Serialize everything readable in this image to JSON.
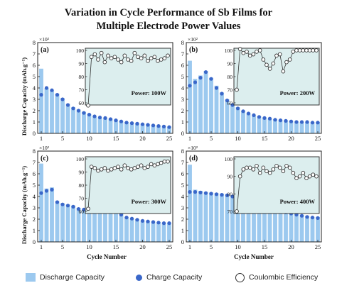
{
  "figure": {
    "title_line1": "Variation in Cycle Performance of Sb Films for",
    "title_line2": "Multiple Electrode Power Values",
    "ylabel": "Discharge Capacity (mAh.g⁻¹)",
    "xlabel": "Cycle Number",
    "y_exponent": "×10²"
  },
  "legend": {
    "discharge": "Discharge Capacity",
    "charge": "Charge Capacity",
    "coulombic": "Coulombic Efficiency"
  },
  "colors": {
    "bar": "#9cc9ef",
    "charge_dot": "#3a67c9",
    "inset_bg": "#dceeee",
    "ring": "#333333"
  },
  "chart_data": [
    {
      "type": "bar",
      "panel_label": "(a)",
      "inset_label": "Power: 100W",
      "x": [
        1,
        2,
        3,
        4,
        5,
        6,
        7,
        8,
        9,
        10,
        11,
        12,
        13,
        14,
        15,
        16,
        17,
        18,
        19,
        20,
        21,
        22,
        23,
        24,
        25
      ],
      "discharge": [
        5.7,
        4.0,
        3.8,
        3.5,
        3.1,
        2.6,
        2.3,
        2.1,
        1.9,
        1.7,
        1.5,
        1.4,
        1.35,
        1.3,
        1.2,
        1.1,
        1.0,
        0.95,
        0.9,
        0.85,
        0.8,
        0.75,
        0.7,
        0.65,
        0.6
      ],
      "charge": [
        3.4,
        4.0,
        3.8,
        3.4,
        3.0,
        2.5,
        2.2,
        2.0,
        1.8,
        1.65,
        1.5,
        1.4,
        1.35,
        1.25,
        1.15,
        1.05,
        0.95,
        0.9,
        0.85,
        0.8,
        0.75,
        0.7,
        0.65,
        0.6,
        0.55
      ],
      "coulombic": [
        58,
        95,
        97,
        93,
        98,
        91,
        96,
        94,
        95,
        93,
        91,
        96,
        93,
        92,
        98,
        95,
        94,
        96,
        92,
        94,
        95,
        92,
        93,
        94,
        96
      ],
      "ylim": [
        0,
        8
      ],
      "yticks": [
        0,
        1,
        2,
        3,
        4,
        5,
        6,
        7,
        8
      ],
      "xticks": [
        1,
        5,
        10,
        15,
        20,
        25
      ],
      "inset_ylim": [
        60,
        100
      ],
      "inset_yticks": [
        60,
        70,
        80,
        90,
        100
      ]
    },
    {
      "type": "bar",
      "panel_label": "(b)",
      "inset_label": "Power: 200W",
      "x": [
        1,
        2,
        3,
        4,
        5,
        6,
        7,
        8,
        9,
        10,
        11,
        12,
        13,
        14,
        15,
        16,
        17,
        18,
        19,
        20,
        21,
        22,
        23,
        24,
        25
      ],
      "discharge": [
        6.4,
        4.8,
        5.1,
        5.5,
        4.9,
        4.2,
        3.6,
        3.0,
        2.6,
        2.3,
        2.0,
        1.8,
        1.6,
        1.5,
        1.4,
        1.3,
        1.25,
        1.2,
        1.15,
        1.1,
        1.05,
        1.0,
        1.0,
        1.0,
        1.0
      ],
      "charge": [
        4.2,
        4.5,
        4.9,
        5.4,
        4.8,
        4.0,
        3.5,
        2.9,
        2.5,
        2.2,
        1.95,
        1.75,
        1.6,
        1.45,
        1.35,
        1.3,
        1.2,
        1.15,
        1.1,
        1.05,
        1.0,
        1.0,
        1.0,
        0.95,
        0.95
      ],
      "coulombic": [
        70,
        101,
        98,
        99,
        96,
        97,
        99,
        100,
        93,
        89,
        86,
        90,
        96,
        97,
        84,
        91,
        93,
        99,
        100,
        100,
        100,
        100,
        100,
        100,
        100
      ],
      "ylim": [
        0,
        8
      ],
      "yticks": [
        0,
        1,
        2,
        3,
        4,
        5,
        6,
        7,
        8
      ],
      "xticks": [
        1,
        5,
        10,
        15,
        20,
        25
      ],
      "inset_ylim": [
        60,
        100
      ],
      "inset_yticks": [
        60,
        70,
        80,
        90,
        100
      ]
    },
    {
      "type": "bar",
      "panel_label": "(c)",
      "inset_label": "Power: 300W",
      "x": [
        1,
        2,
        3,
        4,
        5,
        6,
        7,
        8,
        9,
        10,
        11,
        12,
        13,
        14,
        15,
        16,
        17,
        18,
        19,
        20,
        21,
        22,
        23,
        24,
        25
      ],
      "discharge": [
        6.9,
        4.7,
        4.8,
        3.6,
        3.4,
        3.3,
        3.2,
        3.0,
        2.9,
        2.9,
        3.1,
        3.3,
        3.2,
        3.1,
        2.8,
        2.5,
        2.2,
        2.1,
        2.0,
        1.9,
        1.85,
        1.8,
        1.75,
        1.7,
        1.7
      ],
      "charge": [
        4.3,
        4.5,
        4.6,
        3.5,
        3.3,
        3.2,
        3.1,
        2.9,
        2.85,
        2.85,
        3.0,
        3.2,
        3.1,
        3.0,
        2.7,
        2.4,
        2.15,
        2.05,
        1.95,
        1.85,
        1.8,
        1.75,
        1.7,
        1.65,
        1.65
      ],
      "coulombic": [
        62,
        94,
        93,
        91,
        92,
        93,
        91,
        92,
        93,
        94,
        92,
        95,
        93,
        92,
        93,
        94,
        95,
        93,
        94,
        96,
        95,
        96,
        97,
        98,
        98
      ],
      "ylim": [
        0,
        8
      ],
      "yticks": [
        0,
        1,
        2,
        3,
        4,
        5,
        6,
        7,
        8
      ],
      "xticks": [
        1,
        5,
        10,
        15,
        20,
        25
      ],
      "inset_ylim": [
        60,
        100
      ],
      "inset_yticks": [
        60,
        70,
        80,
        90,
        100
      ]
    },
    {
      "type": "bar",
      "panel_label": "(d)",
      "inset_label": "Power: 400W",
      "x": [
        1,
        2,
        3,
        4,
        5,
        6,
        7,
        8,
        9,
        10,
        11,
        12,
        13,
        14,
        15,
        16,
        17,
        18,
        19,
        20,
        21,
        22,
        23,
        24,
        25
      ],
      "discharge": [
        6.8,
        4.6,
        4.5,
        4.4,
        4.35,
        4.3,
        4.25,
        4.2,
        4.1,
        4.0,
        3.9,
        3.8,
        3.7,
        3.6,
        3.4,
        3.2,
        3.0,
        2.8,
        2.7,
        2.6,
        2.5,
        2.4,
        2.3,
        2.2,
        2.2
      ],
      "charge": [
        4.4,
        4.4,
        4.35,
        4.3,
        4.25,
        4.2,
        4.15,
        4.1,
        4.0,
        3.9,
        3.8,
        3.7,
        3.6,
        3.5,
        3.3,
        3.1,
        2.9,
        2.75,
        2.6,
        2.5,
        2.4,
        2.3,
        2.2,
        2.15,
        2.1
      ],
      "coulombic": [
        70,
        90,
        94,
        95,
        95,
        94,
        96,
        92,
        95,
        93,
        92,
        94,
        96,
        95,
        93,
        96,
        95,
        92,
        89,
        90,
        92,
        89,
        90,
        91,
        90
      ],
      "ylim": [
        0,
        8
      ],
      "yticks": [
        0,
        1,
        2,
        3,
        4,
        5,
        6,
        7,
        8
      ],
      "xticks": [
        1,
        5,
        10,
        15,
        20,
        25
      ],
      "inset_ylim": [
        70,
        100
      ],
      "inset_yticks": [
        70,
        80,
        90,
        100
      ]
    }
  ]
}
